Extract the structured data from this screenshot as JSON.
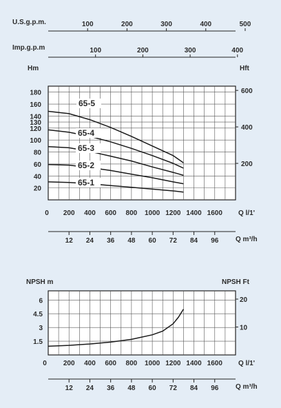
{
  "chart_data": [
    {
      "type": "line",
      "title": "",
      "top_scales": [
        {
          "label": "U.S.g.p.m.",
          "ticks": [
            100,
            200,
            300,
            400,
            500
          ]
        },
        {
          "label": "Imp.g.p.m",
          "ticks": [
            100,
            200,
            300,
            400
          ]
        }
      ],
      "xlabel": "Q l/1'",
      "xticks": [
        0,
        200,
        400,
        600,
        800,
        1000,
        1200,
        1400,
        1600
      ],
      "xlim": [
        0,
        1800
      ],
      "x2label": "Q m³/h",
      "x2ticks": [
        12,
        24,
        36,
        48,
        60,
        72,
        84,
        96
      ],
      "ylabel": "Hm",
      "yticks": [
        20,
        40,
        60,
        80,
        100,
        120,
        130,
        140,
        160,
        180
      ],
      "ylim": [
        0,
        190
      ],
      "y2label": "Hft",
      "y2ticks": [
        200,
        400,
        600
      ],
      "grid": true,
      "series": [
        {
          "name": "65-5",
          "x": [
            0,
            200,
            400,
            600,
            800,
            1000,
            1200,
            1300
          ],
          "y": [
            148,
            144,
            134,
            121,
            106,
            90,
            74,
            62
          ]
        },
        {
          "name": "65-4",
          "x": [
            0,
            200,
            400,
            600,
            800,
            1000,
            1200,
            1300
          ],
          "y": [
            117,
            113,
            106,
            97,
            86,
            74,
            61,
            53
          ]
        },
        {
          "name": "65-3",
          "x": [
            0,
            200,
            400,
            600,
            800,
            1000,
            1200,
            1300
          ],
          "y": [
            89,
            87,
            81,
            73,
            65,
            55,
            46,
            41
          ]
        },
        {
          "name": "65-2",
          "x": [
            0,
            200,
            400,
            600,
            800,
            1000,
            1200,
            1300
          ],
          "y": [
            59,
            58,
            54,
            49,
            43,
            37,
            30,
            27
          ]
        },
        {
          "name": "65-1",
          "x": [
            0,
            200,
            400,
            600,
            800,
            1000,
            1200,
            1300
          ],
          "y": [
            30,
            29,
            27,
            24,
            21,
            18,
            15,
            13
          ]
        }
      ]
    },
    {
      "type": "line",
      "title": "",
      "xlabel": "Q l/1'",
      "xticks": [
        0,
        200,
        400,
        600,
        800,
        1000,
        1200,
        1400,
        1600
      ],
      "xlim": [
        0,
        1800
      ],
      "x2label": "Q m³/h",
      "x2ticks": [
        12,
        24,
        36,
        48,
        60,
        72,
        84,
        96
      ],
      "ylabel": "NPSH m",
      "yticks": [
        1.5,
        3,
        4.5,
        6
      ],
      "ylim": [
        0,
        7
      ],
      "y2label": "NPSH Ft",
      "y2ticks": [
        10,
        20
      ],
      "grid": true,
      "series": [
        {
          "name": "",
          "x": [
            0,
            200,
            400,
            600,
            800,
            1000,
            1100,
            1200,
            1250,
            1300
          ],
          "y": [
            0.95,
            1.05,
            1.2,
            1.4,
            1.7,
            2.2,
            2.6,
            3.4,
            4.1,
            5.0
          ]
        }
      ]
    }
  ]
}
